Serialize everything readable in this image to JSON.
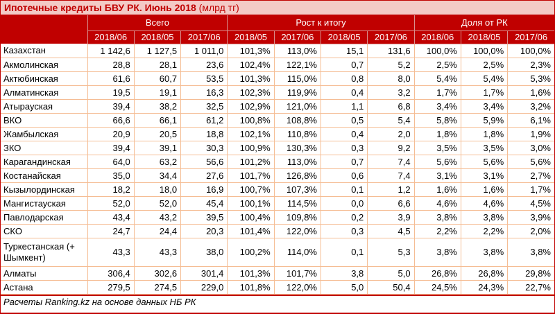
{
  "chart_data": {
    "type": "table",
    "title": {
      "main": "Ипотечные кредиты БВУ РК. Июнь 2018",
      "unit": " (млрд тг)"
    },
    "header": {
      "groups": [
        {
          "label": "Всего",
          "cols": [
            "2018/06",
            "2018/05",
            "2017/06"
          ]
        },
        {
          "label": "Рост к итогу",
          "cols": [
            "2018/05",
            "2017/06",
            "2018/05",
            "2017/06"
          ]
        },
        {
          "label": "Доля от РК",
          "cols": [
            "2018/06",
            "2018/05",
            "2017/06"
          ]
        }
      ]
    },
    "rows": [
      {
        "region": "Казахстан",
        "values": [
          "1 142,6",
          "1 127,5",
          "1 011,0",
          "101,3%",
          "113,0%",
          "15,1",
          "131,6",
          "100,0%",
          "100,0%",
          "100,0%"
        ]
      },
      {
        "region": "Акмолинская",
        "values": [
          "28,8",
          "28,1",
          "23,6",
          "102,4%",
          "122,1%",
          "0,7",
          "5,2",
          "2,5%",
          "2,5%",
          "2,3%"
        ]
      },
      {
        "region": "Актюбинская",
        "values": [
          "61,6",
          "60,7",
          "53,5",
          "101,3%",
          "115,0%",
          "0,8",
          "8,0",
          "5,4%",
          "5,4%",
          "5,3%"
        ]
      },
      {
        "region": "Алматинская",
        "values": [
          "19,5",
          "19,1",
          "16,3",
          "102,3%",
          "119,9%",
          "0,4",
          "3,2",
          "1,7%",
          "1,7%",
          "1,6%"
        ]
      },
      {
        "region": "Атырауская",
        "values": [
          "39,4",
          "38,2",
          "32,5",
          "102,9%",
          "121,0%",
          "1,1",
          "6,8",
          "3,4%",
          "3,4%",
          "3,2%"
        ]
      },
      {
        "region": "ВКО",
        "values": [
          "66,6",
          "66,1",
          "61,2",
          "100,8%",
          "108,8%",
          "0,5",
          "5,4",
          "5,8%",
          "5,9%",
          "6,1%"
        ]
      },
      {
        "region": "Жамбылская",
        "values": [
          "20,9",
          "20,5",
          "18,8",
          "102,1%",
          "110,8%",
          "0,4",
          "2,0",
          "1,8%",
          "1,8%",
          "1,9%"
        ]
      },
      {
        "region": "ЗКО",
        "values": [
          "39,4",
          "39,1",
          "30,3",
          "100,9%",
          "130,3%",
          "0,3",
          "9,2",
          "3,5%",
          "3,5%",
          "3,0%"
        ]
      },
      {
        "region": "Карагандинская",
        "values": [
          "64,0",
          "63,2",
          "56,6",
          "101,2%",
          "113,0%",
          "0,7",
          "7,4",
          "5,6%",
          "5,6%",
          "5,6%"
        ]
      },
      {
        "region": "Костанайская",
        "values": [
          "35,0",
          "34,4",
          "27,6",
          "101,7%",
          "126,8%",
          "0,6",
          "7,4",
          "3,1%",
          "3,1%",
          "2,7%"
        ]
      },
      {
        "region": "Кызылординская",
        "values": [
          "18,2",
          "18,0",
          "16,9",
          "100,7%",
          "107,3%",
          "0,1",
          "1,2",
          "1,6%",
          "1,6%",
          "1,7%"
        ]
      },
      {
        "region": "Мангистауская",
        "values": [
          "52,0",
          "52,0",
          "45,4",
          "100,1%",
          "114,5%",
          "0,0",
          "6,6",
          "4,6%",
          "4,6%",
          "4,5%"
        ]
      },
      {
        "region": "Павлодарская",
        "values": [
          "43,4",
          "43,2",
          "39,5",
          "100,4%",
          "109,8%",
          "0,2",
          "3,9",
          "3,8%",
          "3,8%",
          "3,9%"
        ]
      },
      {
        "region": "СКО",
        "values": [
          "24,7",
          "24,4",
          "20,3",
          "101,4%",
          "122,0%",
          "0,3",
          "4,5",
          "2,2%",
          "2,2%",
          "2,0%"
        ]
      },
      {
        "region": "Туркестанская (+ Шымкент)",
        "values": [
          "43,3",
          "43,3",
          "38,0",
          "100,2%",
          "114,0%",
          "0,1",
          "5,3",
          "3,8%",
          "3,8%",
          "3,8%"
        ],
        "tall": true
      },
      {
        "region": "Алматы",
        "values": [
          "306,4",
          "302,6",
          "301,4",
          "101,3%",
          "101,7%",
          "3,8",
          "5,0",
          "26,8%",
          "26,8%",
          "29,8%"
        ]
      },
      {
        "region": "Астана",
        "values": [
          "279,5",
          "274,5",
          "229,0",
          "101,8%",
          "122,0%",
          "5,0",
          "50,4",
          "24,5%",
          "24,3%",
          "22,7%"
        ]
      }
    ],
    "footer": "Расчеты Ranking.kz на основе данных НБ РК"
  },
  "colors": {
    "accent": "#C00000",
    "title_bg": "#F3CAC6",
    "header_bg": "#C00000",
    "header_text": "#FFFFFF",
    "header_divider": "#D9908E",
    "cell_border": "#F5BD94",
    "body_text": "#000000"
  }
}
